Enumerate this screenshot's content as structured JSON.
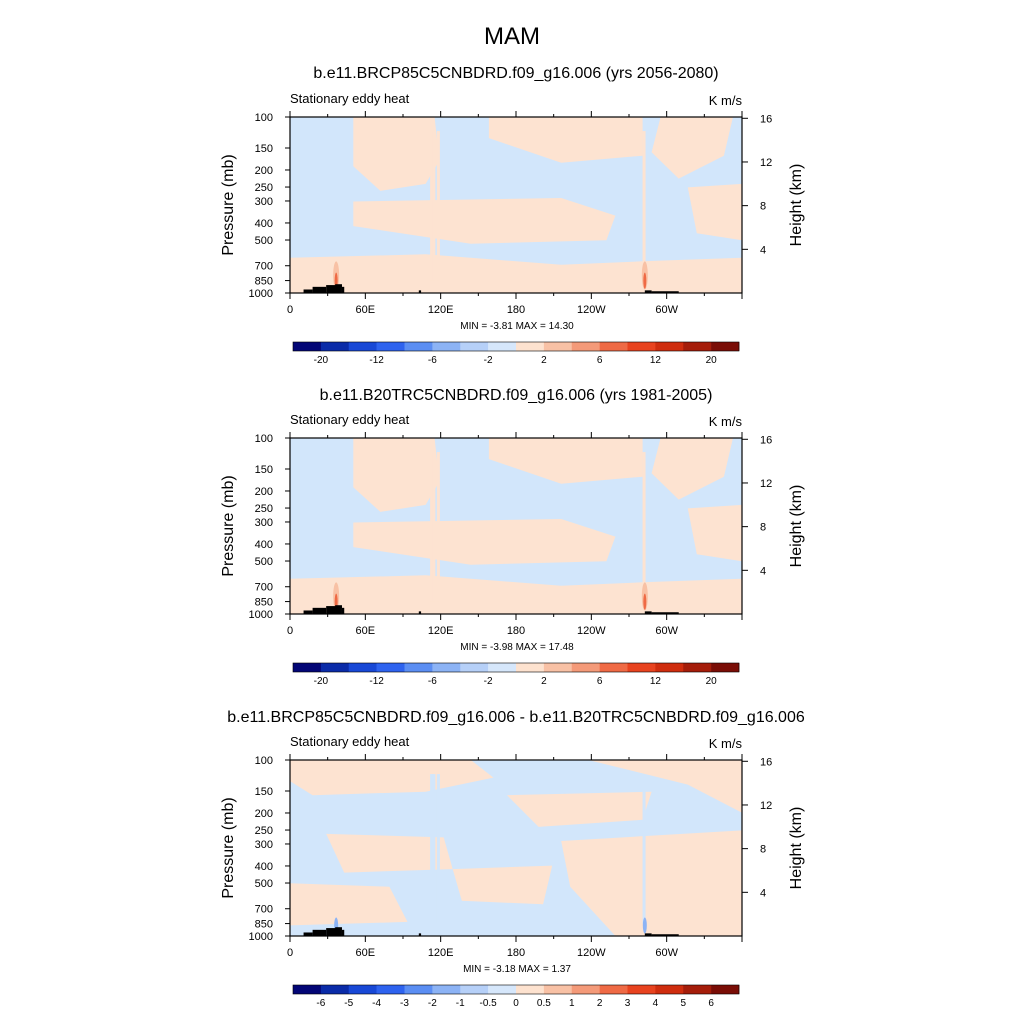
{
  "figure": {
    "title": "MAM"
  },
  "colors": {
    "cold_fill": "#d2e6fb",
    "warm_fill": "#fde3d1",
    "topography": "#000000"
  },
  "chart_data": [
    {
      "type": "heatmap",
      "title": "b.e11.BRCP85C5CNBDRD.f09_g16.006 (yrs 2056-2080)",
      "subtitle_left": "Stationary eddy heat",
      "units": "K m/s",
      "xlabel": "",
      "ylabel": "Pressure (mb)",
      "ylabel_right": "Height (km)",
      "x_ticks": [
        "0",
        "60E",
        "120E",
        "180",
        "120W",
        "60W"
      ],
      "y_ticks": [
        "100",
        "150",
        "200",
        "250",
        "300",
        "400",
        "500",
        "700",
        "850",
        "1000"
      ],
      "y_right_ticks": [
        "4",
        "8",
        "12",
        "16"
      ],
      "stats": "MIN =  -3.81  MAX =  14.30",
      "colorbar": {
        "labels": [
          "-20",
          "-12",
          "-6",
          "-2",
          "2",
          "6",
          "12",
          "20"
        ],
        "colors": [
          "#030676",
          "#0a2ba8",
          "#1848d6",
          "#2e63ef",
          "#5b8ef3",
          "#8cb3f5",
          "#b6d0f8",
          "#d6e7fb",
          "#fde2cf",
          "#f8c1a5",
          "#f49a79",
          "#ef6a45",
          "#e8431f",
          "#cf2d0e",
          "#a51d0a",
          "#7a0d06"
        ]
      },
      "field": {
        "min": -3.81,
        "max": 14.3,
        "dominant_contours": [
          -2,
          2
        ]
      }
    },
    {
      "type": "heatmap",
      "title": "b.e11.B20TRC5CNBDRD.f09_g16.006 (yrs 1981-2005)",
      "subtitle_left": "Stationary eddy heat",
      "units": "K m/s",
      "xlabel": "",
      "ylabel": "Pressure (mb)",
      "ylabel_right": "Height (km)",
      "x_ticks": [
        "0",
        "60E",
        "120E",
        "180",
        "120W",
        "60W"
      ],
      "y_ticks": [
        "100",
        "150",
        "200",
        "250",
        "300",
        "400",
        "500",
        "700",
        "850",
        "1000"
      ],
      "y_right_ticks": [
        "4",
        "8",
        "12",
        "16"
      ],
      "stats": "MIN =  -3.98  MAX =  17.48",
      "colorbar": {
        "labels": [
          "-20",
          "-12",
          "-6",
          "-2",
          "2",
          "6",
          "12",
          "20"
        ],
        "colors": [
          "#030676",
          "#0a2ba8",
          "#1848d6",
          "#2e63ef",
          "#5b8ef3",
          "#8cb3f5",
          "#b6d0f8",
          "#d6e7fb",
          "#fde2cf",
          "#f8c1a5",
          "#f49a79",
          "#ef6a45",
          "#e8431f",
          "#cf2d0e",
          "#a51d0a",
          "#7a0d06"
        ]
      },
      "field": {
        "min": -3.98,
        "max": 17.48,
        "dominant_contours": [
          -2,
          2
        ]
      }
    },
    {
      "type": "heatmap",
      "title": "b.e11.BRCP85C5CNBDRD.f09_g16.006 - b.e11.B20TRC5CNBDRD.f09_g16.006",
      "subtitle_left": "Stationary eddy heat",
      "units": "K m/s",
      "xlabel": "",
      "ylabel": "Pressure (mb)",
      "ylabel_right": "Height (km)",
      "x_ticks": [
        "0",
        "60E",
        "120E",
        "180",
        "120W",
        "60W"
      ],
      "y_ticks": [
        "100",
        "150",
        "200",
        "250",
        "300",
        "400",
        "500",
        "700",
        "850",
        "1000"
      ],
      "y_right_ticks": [
        "4",
        "8",
        "12",
        "16"
      ],
      "stats": "MIN =  -3.18  MAX =   1.37",
      "colorbar": {
        "labels": [
          "-6",
          "-5",
          "-4",
          "-3",
          "-2",
          "-1",
          "-0.5",
          "0",
          "0.5",
          "1",
          "2",
          "3",
          "4",
          "5",
          "6"
        ],
        "colors": [
          "#030676",
          "#0a2ba8",
          "#1848d6",
          "#2e63ef",
          "#5b8ef3",
          "#8cb3f5",
          "#b6d0f8",
          "#d6e7fb",
          "#fde2cf",
          "#f8c1a5",
          "#f49a79",
          "#ef6a45",
          "#e8431f",
          "#cf2d0e",
          "#a51d0a",
          "#7a0d06"
        ]
      },
      "field": {
        "min": -3.18,
        "max": 1.37,
        "dominant_contours": [
          -0.5,
          0.5
        ]
      }
    }
  ]
}
